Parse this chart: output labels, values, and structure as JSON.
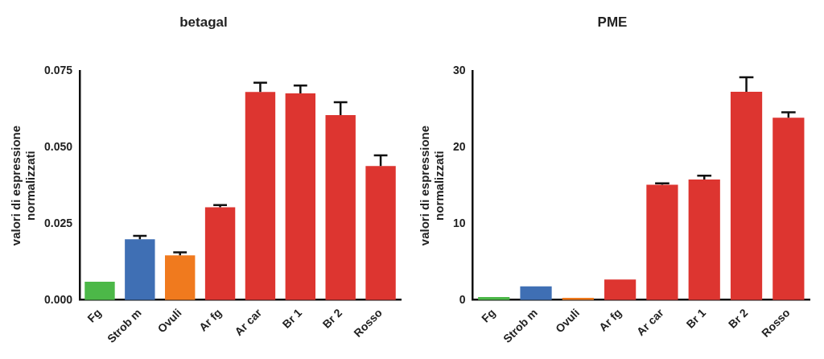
{
  "chart_data": [
    {
      "type": "bar",
      "title": "betagal",
      "ylabel": "valori di espressione\nnormalizzati",
      "categories": [
        "Fg",
        "Strob m",
        "Ovuli",
        "Ar fg",
        "Ar car",
        "Br 1",
        "Br 2",
        "Rosso"
      ],
      "values": [
        0.006,
        0.0199,
        0.0146,
        0.0304,
        0.0682,
        0.0677,
        0.0606,
        0.0439
      ],
      "errors": [
        null,
        [
          0.0199,
          0.021
        ],
        [
          0.0146,
          0.0156
        ],
        [
          0.0304,
          0.0311
        ],
        [
          0.0682,
          0.0712
        ],
        [
          0.0677,
          0.0703
        ],
        [
          0.0606,
          0.0648
        ],
        [
          0.0439,
          0.0474
        ]
      ],
      "colors": [
        "#4cb848",
        "#3f6fb4",
        "#f07a1e",
        "#dd3530",
        "#dd3530",
        "#dd3530",
        "#dd3530",
        "#dd3530"
      ],
      "ylim": [
        0,
        0.075
      ],
      "yticks": [
        {
          "value": 0,
          "label": "0.000"
        },
        {
          "value": 0.025,
          "label": "0.025"
        },
        {
          "value": 0.05,
          "label": "0.050"
        },
        {
          "value": 0.075,
          "label": "0.075"
        }
      ],
      "grid": false,
      "legend": false
    },
    {
      "type": "bar",
      "title": "PME",
      "ylabel": "valori di espressione\nnormalizzati",
      "categories": [
        "Fg",
        "Strob m",
        "Ovuli",
        "Ar fg",
        "Ar car",
        "Br 1",
        "Br 2",
        "Rosso"
      ],
      "values": [
        0.4,
        1.8,
        0.3,
        2.7,
        15.1,
        15.8,
        27.3,
        23.9
      ],
      "errors": [
        null,
        null,
        null,
        null,
        [
          15.1,
          15.3
        ],
        [
          15.8,
          16.3
        ],
        [
          27.3,
          29.2
        ],
        [
          23.9,
          24.6
        ]
      ],
      "colors": [
        "#4cb848",
        "#3f6fb4",
        "#f07a1e",
        "#dd3530",
        "#dd3530",
        "#dd3530",
        "#dd3530",
        "#dd3530"
      ],
      "ylim": [
        0,
        30
      ],
      "yticks": [
        0,
        10,
        20,
        30
      ],
      "grid": false,
      "legend": false
    }
  ]
}
